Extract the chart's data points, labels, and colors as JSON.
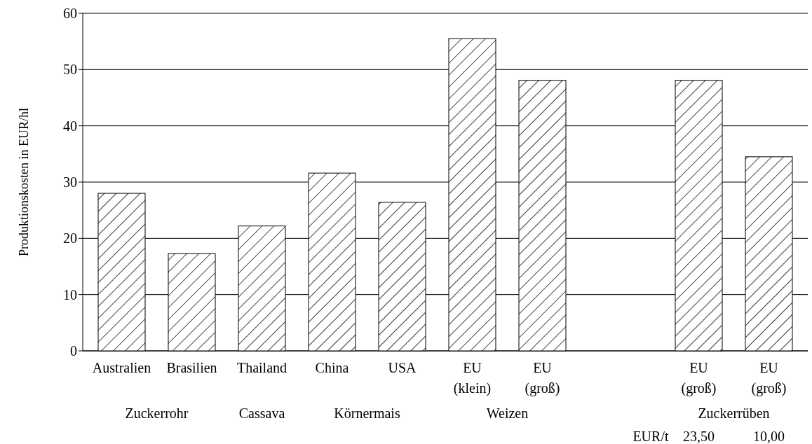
{
  "chart_data": {
    "type": "bar",
    "ylabel": "Produktionskosten in EUR/hl",
    "categories": [
      "Australien",
      "Brasilien",
      "Thailand",
      "China",
      "USA",
      "EU\n(klein)",
      "EU\n(groß)",
      null,
      "EU\n(groß)",
      "EU\n(groß)"
    ],
    "values": [
      28,
      17.3,
      22.2,
      31.6,
      26.4,
      55.5,
      48.1,
      null,
      48.1,
      34.5
    ],
    "color": "#000000",
    "ylim": [
      0,
      60
    ],
    "yticks": [
      0,
      10,
      20,
      30,
      40,
      50,
      60
    ],
    "grid": "y",
    "annotations": [
      "Zuckerrohr",
      "Cassava",
      "Körnermais",
      "Weizen",
      "Zuckerrüben",
      "EUR/t",
      "23,50",
      "10,00"
    ]
  }
}
